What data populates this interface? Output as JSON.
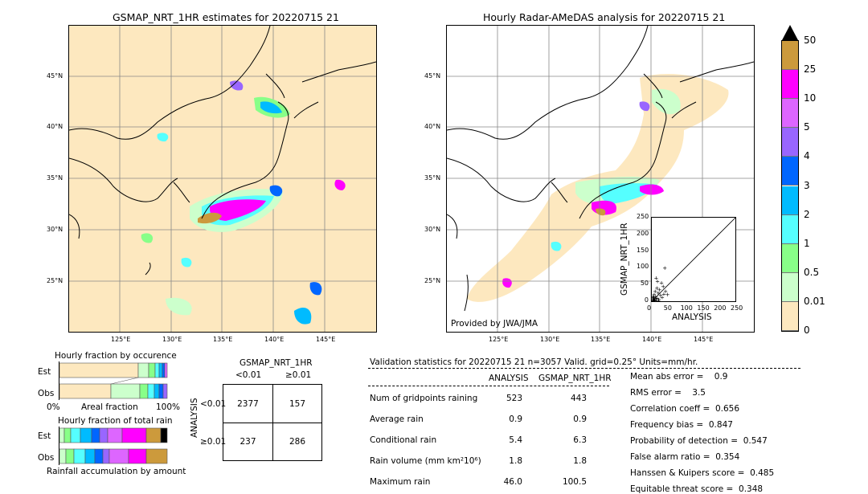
{
  "left_map": {
    "title": "GSMAP_NRT_1HR estimates for 20220715 21",
    "lat_labels": [
      "45°N",
      "40°N",
      "35°N",
      "30°N",
      "25°N"
    ],
    "lon_labels": [
      "125°E",
      "130°E",
      "135°E",
      "140°E",
      "145°E"
    ]
  },
  "right_map": {
    "title": "Hourly Radar-AMeDAS analysis for 20220715 21",
    "lat_labels": [
      "45°N",
      "40°N",
      "35°N",
      "30°N",
      "25°N"
    ],
    "lon_labels": [
      "125°E",
      "130°E",
      "135°E",
      "140°E",
      "145°E"
    ],
    "provided_by": "Provided by JWA/JMA",
    "inset": {
      "ylabel": "GSMAP_NRT_1HR",
      "xlabel": "ANALYSIS",
      "ticks": [
        "0",
        "50",
        "100",
        "150",
        "200",
        "250"
      ]
    }
  },
  "colorbar": {
    "labels": [
      "50",
      "25",
      "10",
      "5",
      "4",
      "3",
      "2",
      "1",
      "0.5",
      "0.01",
      "0"
    ],
    "colors": [
      "#cc9a3c",
      "#ff00ff",
      "#dd66ff",
      "#9966ff",
      "#0066ff",
      "#00bbff",
      "#55ffff",
      "#88ff88",
      "#ccffcc",
      "#fde8bf"
    ]
  },
  "fraction_occurrence": {
    "title": "Hourly fraction by occurence",
    "row_labels": [
      "Est",
      "Obs"
    ],
    "axis_left": "0%",
    "axis_mid": "Areal fraction",
    "axis_right": "100%"
  },
  "fraction_total": {
    "title": "Hourly fraction of total rain",
    "row_labels": [
      "Est",
      "Obs"
    ],
    "footer": "Rainfall accumulation by amount"
  },
  "contingency": {
    "title": "GSMAP_NRT_1HR",
    "col_labels": [
      "<0.01",
      "≥0.01"
    ],
    "row_axis": "ANALYSIS",
    "row_labels": [
      "<0.01",
      "≥0.01"
    ],
    "cells": [
      [
        "2377",
        "157"
      ],
      [
        "237",
        "286"
      ]
    ]
  },
  "validation": {
    "header": "Validation statistics for 20220715 21  n=3057 Valid. grid=0.25° Units=mm/hr.",
    "col_analysis": "ANALYSIS",
    "col_gsmap": "GSMAP_NRT_1HR",
    "rows": [
      {
        "label": "Num of gridpoints raining",
        "a": "523",
        "g": "443"
      },
      {
        "label": "Average rain",
        "a": "0.9",
        "g": "0.9"
      },
      {
        "label": "Conditional rain",
        "a": "5.4",
        "g": "6.3"
      },
      {
        "label": "Rain volume (mm km²10⁶)",
        "a": "1.8",
        "g": "1.8"
      },
      {
        "label": "Maximum rain",
        "a": "46.0",
        "g": "100.5"
      }
    ],
    "scores": [
      "Mean abs error =    0.9",
      "RMS error =    3.5",
      "Correlation coeff =  0.656",
      "Frequency bias =  0.847",
      "Probability of detection =  0.547",
      "False alarm ratio =  0.354",
      "Hanssen & Kuipers score =  0.485",
      "Equitable threat score =  0.348"
    ]
  },
  "chart_data": {
    "type": "scatter",
    "xlabel": "ANALYSIS",
    "ylabel": "GSMAP_NRT_1HR",
    "xlim": [
      0,
      250
    ],
    "ylim": [
      0,
      250
    ],
    "points": [
      [
        2,
        3
      ],
      [
        3,
        1
      ],
      [
        5,
        8
      ],
      [
        4,
        12
      ],
      [
        8,
        5
      ],
      [
        10,
        15
      ],
      [
        12,
        3
      ],
      [
        6,
        20
      ],
      [
        15,
        10
      ],
      [
        18,
        25
      ],
      [
        20,
        6
      ],
      [
        9,
        30
      ],
      [
        25,
        18
      ],
      [
        30,
        12
      ],
      [
        14,
        40
      ],
      [
        22,
        35
      ],
      [
        35,
        22
      ],
      [
        40,
        30
      ],
      [
        28,
        55
      ],
      [
        16,
        60
      ],
      [
        46,
        20
      ],
      [
        33,
        45
      ],
      [
        12,
        70
      ],
      [
        38,
        100
      ],
      [
        5,
        2
      ],
      [
        7,
        4
      ],
      [
        11,
        9
      ],
      [
        3,
        6
      ],
      [
        2,
        14
      ],
      [
        19,
        2
      ]
    ]
  }
}
